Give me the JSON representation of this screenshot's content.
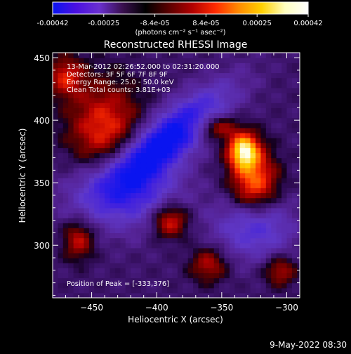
{
  "colorbar": {
    "tick_labels": [
      "-0.00042",
      "-0.00025",
      "-8.4e-05",
      "8.4e-05",
      "0.00025",
      "0.00042"
    ],
    "unit_label": "(photons cm⁻² s⁻¹ asec⁻²)",
    "stops": [
      "#0a14f0",
      "#4a10e0",
      "#6a30d0",
      "#3a1050",
      "#000000",
      "#5a0000",
      "#b00000",
      "#ff2a00",
      "#ff8a00",
      "#ffd000",
      "#ffffc0",
      "#ffffff"
    ]
  },
  "plot": {
    "title": "Reconstructed RHESSI Image",
    "annotations": [
      "13-Mar-2012 02:26:52.000 to 02:31:20.000",
      "Detectors: 3F 5F 6F 7F 8F 9F",
      "Energy Range: 25.0 - 50.0 keV",
      "Clean      Total counts: 3.81E+03"
    ],
    "peak_label": "Position of Peak = [-333,376]"
  },
  "chart_data": {
    "type": "heatmap",
    "title": "Reconstructed RHESSI Image",
    "xlabel": "Heliocentric X (arcsec)",
    "ylabel": "Heliocentric Y (arcsec)",
    "xlim": [
      -480,
      -290
    ],
    "ylim": [
      258,
      454
    ],
    "xticks": [
      -450,
      -400,
      -350,
      -300
    ],
    "yticks": [
      300,
      350,
      400,
      450
    ],
    "colorbar_range": [
      -0.00042,
      0.00042
    ],
    "peak": {
      "x": -333,
      "y": 376
    },
    "features": [
      {
        "kind": "negative",
        "x": -392,
        "y": 385,
        "rx": 55,
        "ry": 18,
        "angle": 40,
        "value": -0.0004
      },
      {
        "kind": "negative",
        "x": -425,
        "y": 345,
        "rx": 40,
        "ry": 30,
        "angle": 0,
        "value": -0.00028
      },
      {
        "kind": "negative",
        "x": -325,
        "y": 315,
        "rx": 30,
        "ry": 25,
        "angle": 0,
        "value": -0.00022
      },
      {
        "kind": "positive",
        "x": -333,
        "y": 376,
        "rx": 12,
        "ry": 14,
        "angle": 0,
        "value": 0.00042
      },
      {
        "kind": "positive",
        "x": -325,
        "y": 350,
        "rx": 18,
        "ry": 24,
        "angle": 0,
        "value": 0.0003
      },
      {
        "kind": "positive",
        "x": -355,
        "y": 395,
        "rx": 16,
        "ry": 10,
        "angle": 0,
        "value": 0.00022
      },
      {
        "kind": "positive",
        "x": -440,
        "y": 390,
        "rx": 28,
        "ry": 40,
        "angle": 0,
        "value": 0.00025
      },
      {
        "kind": "positive",
        "x": -390,
        "y": 320,
        "rx": 14,
        "ry": 14,
        "angle": 0,
        "value": 0.00025
      },
      {
        "kind": "positive",
        "x": -460,
        "y": 305,
        "rx": 12,
        "ry": 16,
        "angle": 0,
        "value": 0.0002
      },
      {
        "kind": "positive",
        "x": -360,
        "y": 285,
        "rx": 14,
        "ry": 14,
        "angle": 0,
        "value": 0.00018
      },
      {
        "kind": "positive",
        "x": -305,
        "y": 280,
        "rx": 12,
        "ry": 12,
        "angle": 0,
        "value": 0.00018
      },
      {
        "kind": "positive",
        "x": -470,
        "y": 435,
        "rx": 14,
        "ry": 16,
        "angle": 0,
        "value": 0.0002
      }
    ]
  },
  "footer": {
    "date_stamp": "9-May-2022 08:30"
  }
}
